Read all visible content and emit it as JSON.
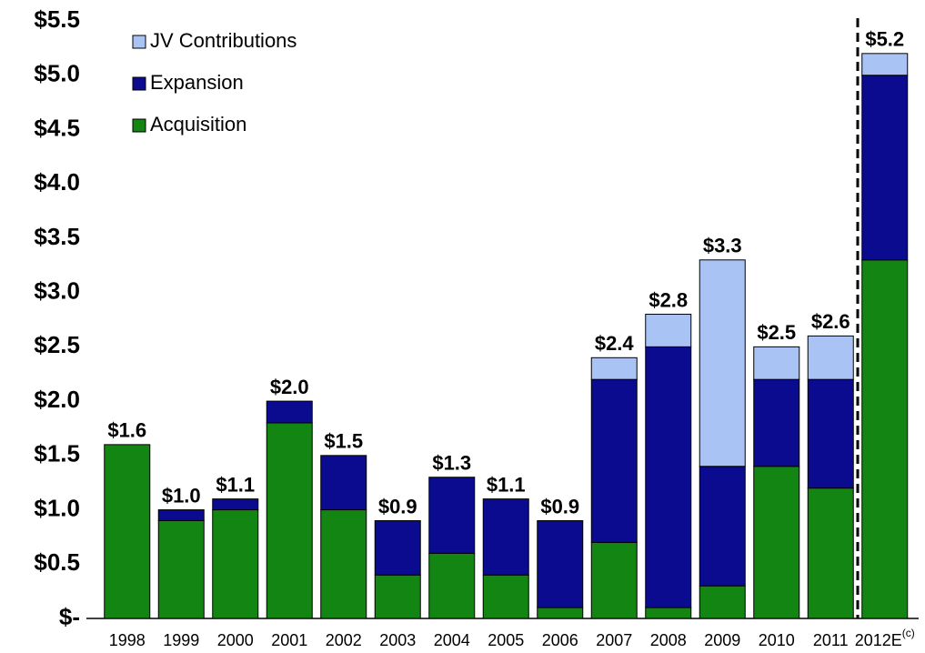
{
  "chart_data": {
    "type": "stacked_bar",
    "categories": [
      "1998",
      "1999",
      "2000",
      "2001",
      "2002",
      "2003",
      "2004",
      "2005",
      "2006",
      "2007",
      "2008",
      "2009",
      "2010",
      "2011",
      "2012E"
    ],
    "last_category_superscript": "(c)",
    "series": [
      {
        "name": "Acquisition",
        "color": "#128512",
        "values": [
          1.6,
          0.9,
          1.0,
          1.8,
          1.0,
          0.4,
          0.6,
          0.4,
          0.1,
          0.7,
          0.1,
          0.3,
          1.4,
          1.2,
          3.3
        ]
      },
      {
        "name": "Expansion",
        "color": "#0b0b8f",
        "values": [
          0,
          0.1,
          0.1,
          0.2,
          0.5,
          0.5,
          0.7,
          0.7,
          0.8,
          1.5,
          2.4,
          1.1,
          0.8,
          1.0,
          1.7
        ]
      },
      {
        "name": "JV Contributions",
        "color": "#a9c3f5",
        "values": [
          0,
          0,
          0,
          0,
          0,
          0,
          0,
          0,
          0,
          0.2,
          0.3,
          1.9,
          0.3,
          0.4,
          0.2
        ]
      }
    ],
    "totals": [
      1.6,
      1.0,
      1.1,
      2.0,
      1.5,
      0.9,
      1.3,
      1.1,
      0.9,
      2.4,
      2.8,
      3.3,
      2.5,
      2.6,
      5.2
    ],
    "total_labels": [
      "$1.6",
      "$1.0",
      "$1.1",
      "$2.0",
      "$1.5",
      "$0.9",
      "$1.3",
      "$1.1",
      "$0.9",
      "$2.4",
      "$2.8",
      "$3.3",
      "$2.5",
      "$2.6",
      "$5.2"
    ],
    "ylim": [
      0,
      5.5
    ],
    "yticks": [
      {
        "value": 0,
        "label": "$-"
      },
      {
        "value": 0.5,
        "label": "$0.5"
      },
      {
        "value": 1.0,
        "label": "$1.0"
      },
      {
        "value": 1.5,
        "label": "$1.5"
      },
      {
        "value": 2.0,
        "label": "$2.0"
      },
      {
        "value": 2.5,
        "label": "$2.5"
      },
      {
        "value": 3.0,
        "label": "$3.0"
      },
      {
        "value": 3.5,
        "label": "$3.5"
      },
      {
        "value": 4.0,
        "label": "$4.0"
      },
      {
        "value": 4.5,
        "label": "$4.5"
      },
      {
        "value": 5.0,
        "label": "$5.0"
      },
      {
        "value": 5.5,
        "label": "$5.5"
      }
    ],
    "legend": "top-left"
  }
}
